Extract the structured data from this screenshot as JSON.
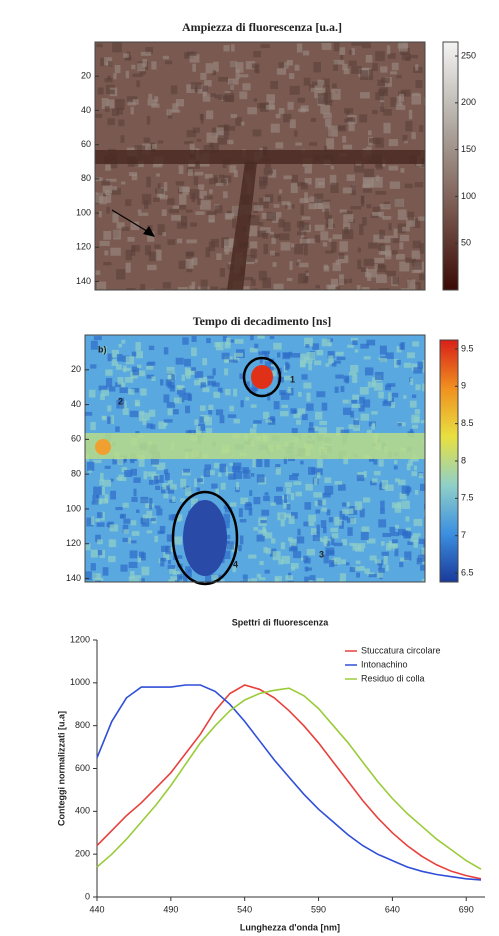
{
  "chart_data": [
    {
      "type": "heatmap",
      "title": "Ampiezza di fluorescenza [u.a.]",
      "ylim": [
        0,
        145
      ],
      "yticks": [
        20,
        40,
        60,
        80,
        100,
        120,
        140
      ],
      "clim": [
        0,
        265
      ],
      "cticks": [
        50,
        100,
        150,
        200,
        250
      ],
      "colormap": [
        "#3a0a05",
        "#7a5a50",
        "#b0aaa2",
        "#f4f4f4"
      ]
    },
    {
      "type": "heatmap",
      "title": "Tempo di decadimento [ns]",
      "ylim": [
        0,
        142
      ],
      "yticks": [
        20,
        40,
        60,
        80,
        100,
        120,
        140
      ],
      "clim": [
        6.38,
        9.62
      ],
      "cticks": [
        6.5,
        7,
        7.5,
        8,
        8.5,
        9,
        9.5
      ],
      "colormap": [
        "#1a3a9a",
        "#3c8fe0",
        "#8fd0c8",
        "#e8e040",
        "#f09020",
        "#d82018"
      ],
      "annotations": [
        "b)",
        "2",
        "1",
        "4",
        "3"
      ]
    },
    {
      "type": "line",
      "title": "Spettri di fluorescenza",
      "xlabel": "Lunghezza d'onda [nm]",
      "ylabel": "Conteggi normalizzati [u.a]",
      "xlim": [
        440,
        700
      ],
      "xticks": [
        440,
        490,
        540,
        590,
        640,
        690
      ],
      "ylim": [
        0,
        1200
      ],
      "yticks": [
        0,
        200,
        400,
        600,
        800,
        1000,
        1200
      ],
      "legend": "upper right",
      "x": [
        440,
        450,
        460,
        470,
        480,
        490,
        500,
        510,
        520,
        530,
        540,
        550,
        560,
        570,
        580,
        590,
        600,
        610,
        620,
        630,
        640,
        650,
        660,
        670,
        680,
        690,
        700
      ],
      "series": [
        {
          "name": "Stuccatura circolare",
          "color": "#e8413c",
          "values": [
            240,
            310,
            380,
            440,
            510,
            580,
            670,
            760,
            870,
            950,
            990,
            970,
            930,
            870,
            800,
            720,
            630,
            540,
            450,
            370,
            300,
            240,
            190,
            150,
            120,
            100,
            85
          ]
        },
        {
          "name": "Intonachino",
          "color": "#2f4fd8",
          "values": [
            650,
            820,
            930,
            980,
            980,
            980,
            990,
            990,
            960,
            900,
            820,
            730,
            640,
            560,
            480,
            410,
            350,
            290,
            240,
            200,
            170,
            140,
            120,
            105,
            95,
            85,
            80
          ]
        },
        {
          "name": "Residuo di colla",
          "color": "#9acc3a",
          "values": [
            140,
            200,
            270,
            350,
            430,
            520,
            620,
            720,
            800,
            870,
            920,
            950,
            965,
            975,
            940,
            880,
            800,
            720,
            630,
            540,
            460,
            390,
            330,
            270,
            220,
            170,
            130
          ]
        }
      ]
    }
  ]
}
